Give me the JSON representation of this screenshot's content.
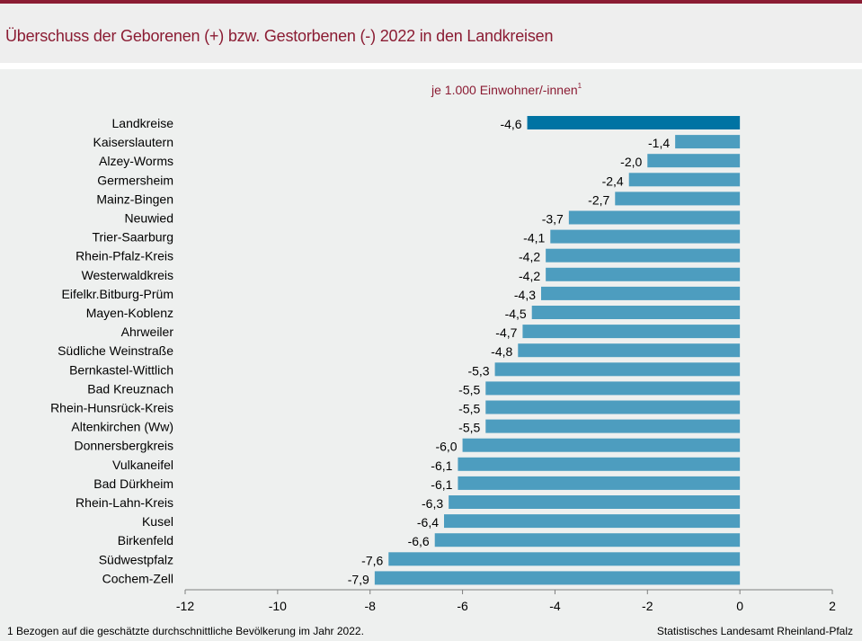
{
  "header": {
    "title": "Überschuss der Geborenen (+) bzw. Gestorbenen (-) 2022 in den Landkreisen",
    "accent_color": "#8b1c33"
  },
  "subtitle": {
    "text": "je 1.000 Einwohner/-innen",
    "footnote_marker": "1"
  },
  "footer": {
    "footnote": "1 Bezogen auf die geschätzte durchschnittliche Bevölkerung  im Jahr 2022.",
    "source": "Statistisches Landesamt Rheinland-Pfalz"
  },
  "chart_data": {
    "type": "bar",
    "orientation": "horizontal",
    "title": "Überschuss der Geborenen (+) bzw. Gestorbenen (-) 2022 in den Landkreisen",
    "subtitle": "je 1.000 Einwohner/-innen",
    "xlabel": "",
    "ylabel": "",
    "categories": [
      "Landkreise",
      "Kaiserslautern",
      "Alzey-Worms",
      "Germersheim",
      "Mainz-Bingen",
      "Neuwied",
      "Trier-Saarburg",
      "Rhein-Pfalz-Kreis",
      "Westerwaldkreis",
      "Eifelkr.Bitburg-Prüm",
      "Mayen-Koblenz",
      "Ahrweiler",
      "Südliche Weinstraße",
      "Bernkastel-Wittlich",
      "Bad Kreuznach",
      "Rhein-Hunsrück-Kreis",
      "Altenkirchen (Ww)",
      "Donnersbergkreis",
      "Vulkaneifel",
      "Bad Dürkheim",
      "Rhein-Lahn-Kreis",
      "Kusel",
      "Birkenfeld",
      "Südwestpfalz",
      "Cochem-Zell"
    ],
    "values": [
      -4.6,
      -1.4,
      -2.0,
      -2.4,
      -2.7,
      -3.7,
      -4.1,
      -4.2,
      -4.2,
      -4.3,
      -4.5,
      -4.7,
      -4.8,
      -5.3,
      -5.5,
      -5.5,
      -5.5,
      -6.0,
      -6.1,
      -6.1,
      -6.3,
      -6.4,
      -6.6,
      -7.6,
      -7.9
    ],
    "value_labels": [
      "-4,6",
      "-1,4",
      "-2,0",
      "-2,4",
      "-2,7",
      "-3,7",
      "-4,1",
      "-4,2",
      "-4,2",
      "-4,3",
      "-4,5",
      "-4,7",
      "-4,8",
      "-5,3",
      "-5,5",
      "-5,5",
      "-5,5",
      "-6,0",
      "-6,1",
      "-6,1",
      "-6,3",
      "-6,4",
      "-6,6",
      "-7,6",
      "-7,9"
    ],
    "highlight_index": 0,
    "colors": {
      "highlight": "#0073a3",
      "bar": "#4d9dbf",
      "axis": "#7f7f7f"
    },
    "xlim": [
      -12,
      2
    ],
    "xticks": [
      -12,
      -10,
      -8,
      -6,
      -4,
      -2,
      0,
      2
    ],
    "grid": false,
    "legend": "none"
  }
}
